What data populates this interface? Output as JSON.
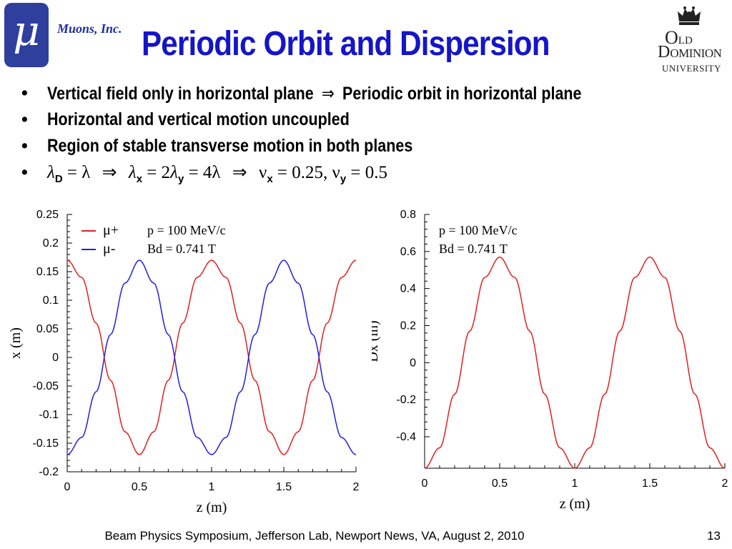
{
  "logo": {
    "symbol": "μ",
    "company": "Muons, Inc."
  },
  "title": "Periodic Orbit and Dispersion",
  "university": {
    "line1_big": "O",
    "line1_small": "LD",
    "line2_big": "D",
    "line2_small": "OMINION",
    "line3": "UNIVERSITY"
  },
  "bullets": [
    "Vertical field only in horizontal plane",
    "Periodic orbit in horizontal plane",
    "Horizontal and vertical motion uncoupled",
    "Region of stable transverse motion in both planes"
  ],
  "bullet_marker": "•",
  "arrow": "⇒",
  "equation": {
    "lambda": "λ",
    "sub_D": "D",
    "eq1": "= λ",
    "sub_x": "x",
    "eq2": "= 2",
    "sub_y": "y",
    "eq3": "= 4λ",
    "nu": "ν",
    "nu_x_value": "= 0.25,",
    "nu_y_value": "= 0.5"
  },
  "footer": "Beam Physics Symposium, Jefferson Lab, Newport News, VA, August 2, 2010",
  "page_number": "13",
  "colors": {
    "title": "#1515c8",
    "logo_bg": "#2f3f9e",
    "mu_plus": "#e02020",
    "mu_minus": "#2020e0"
  },
  "chart_data": [
    {
      "type": "line",
      "xlabel": "z (m)",
      "ylabel": "x (m)",
      "xlim": [
        0,
        2
      ],
      "ylim": [
        -0.2,
        0.25
      ],
      "xticks": [
        "0",
        "0.5",
        "1",
        "1.5",
        "2"
      ],
      "yticks": [
        "0.25",
        "0.2",
        "0.15",
        "0.1",
        "0.05",
        "0",
        "-0.05",
        "-0.1",
        "-0.15",
        "-0.2"
      ],
      "annotation": [
        "p = 100 MeV/c",
        "Bd = 0.741 T"
      ],
      "legend_position": "top-left",
      "series": [
        {
          "name": "μ+",
          "color": "#e02020",
          "x": [
            0,
            0.1,
            0.2,
            0.3,
            0.4,
            0.5,
            0.6,
            0.7,
            0.8,
            0.9,
            1.0,
            1.1,
            1.2,
            1.3,
            1.4,
            1.5,
            1.6,
            1.7,
            1.8,
            1.9,
            2.0
          ],
          "values": [
            0.17,
            0.14,
            0.06,
            -0.04,
            -0.13,
            -0.17,
            -0.13,
            -0.04,
            0.06,
            0.14,
            0.17,
            0.14,
            0.06,
            -0.04,
            -0.13,
            -0.17,
            -0.13,
            -0.04,
            0.06,
            0.14,
            0.17
          ]
        },
        {
          "name": "μ-",
          "color": "#2020e0",
          "x": [
            0,
            0.1,
            0.2,
            0.3,
            0.4,
            0.5,
            0.6,
            0.7,
            0.8,
            0.9,
            1.0,
            1.1,
            1.2,
            1.3,
            1.4,
            1.5,
            1.6,
            1.7,
            1.8,
            1.9,
            2.0
          ],
          "values": [
            -0.17,
            -0.14,
            -0.06,
            0.04,
            0.13,
            0.17,
            0.13,
            0.04,
            -0.06,
            -0.14,
            -0.17,
            -0.14,
            -0.06,
            0.04,
            0.13,
            0.17,
            0.13,
            0.04,
            -0.06,
            -0.14,
            -0.17
          ]
        }
      ]
    },
    {
      "type": "line",
      "xlabel": "z (m)",
      "ylabel": "Dx (m)",
      "xlim": [
        0,
        2
      ],
      "ylim": [
        -0.57,
        0.8
      ],
      "xticks": [
        "0",
        "0.5",
        "1",
        "1.5",
        "2"
      ],
      "yticks": [
        "0.8",
        "0.6",
        "0.4",
        "0.2",
        "0",
        "-0.2",
        "-0.4"
      ],
      "annotation": [
        "p = 100 MeV/c",
        "Bd = 0.741 T"
      ],
      "series": [
        {
          "name": "",
          "color": "#e02020",
          "x": [
            0,
            0.1,
            0.2,
            0.3,
            0.4,
            0.5,
            0.6,
            0.7,
            0.8,
            0.9,
            1.0,
            1.1,
            1.2,
            1.3,
            1.4,
            1.5,
            1.6,
            1.7,
            1.8,
            1.9,
            2.0
          ],
          "values": [
            -0.57,
            -0.46,
            -0.17,
            0.17,
            0.46,
            0.57,
            0.46,
            0.17,
            -0.17,
            -0.46,
            -0.57,
            -0.46,
            -0.17,
            0.17,
            0.46,
            0.57,
            0.46,
            0.17,
            -0.17,
            -0.46,
            -0.57
          ]
        }
      ]
    }
  ]
}
